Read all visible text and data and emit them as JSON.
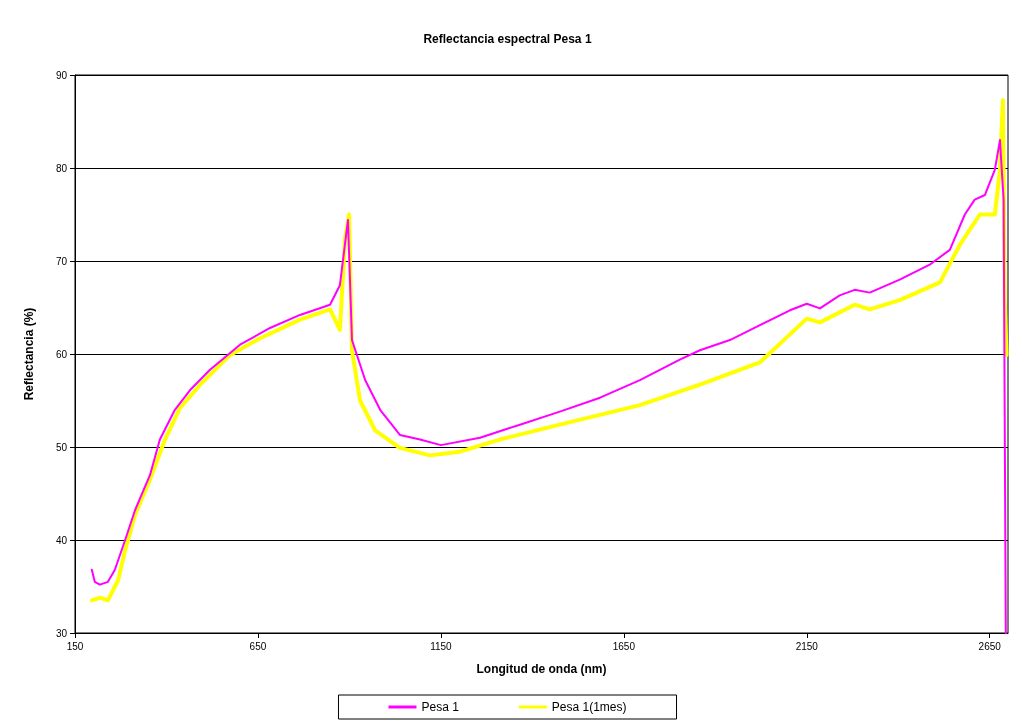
{
  "chart_data": {
    "type": "line",
    "title": "Reflectancia espectral Pesa 1",
    "xlabel": "Longitud de onda (nm)",
    "ylabel": "Reflectancia (%)",
    "xlim": [
      150,
      2700
    ],
    "xticks": [
      150,
      650,
      1150,
      1650,
      2150,
      2650
    ],
    "ylim": [
      30,
      90
    ],
    "yticks": [
      30,
      40,
      50,
      60,
      70,
      80,
      90
    ],
    "grid": "y",
    "legend": "bottom",
    "marker": "none",
    "line_style": "solid",
    "series": [
      {
        "name": "Pesa 1",
        "color": "#ff00ff",
        "x": [
          196,
          204,
          218,
          240,
          259,
          287,
          314,
          355,
          382,
          423,
          464,
          519,
          601,
          683,
          765,
          847,
          874,
          896,
          907,
          943,
          984,
          1038,
          1093,
          1150,
          1257,
          1366,
          1475,
          1585,
          1694,
          1803,
          1858,
          1940,
          2022,
          2104,
          2150,
          2186,
          2240,
          2281,
          2322,
          2404,
          2486,
          2541,
          2582,
          2609,
          2637,
          2664,
          2678,
          2688,
          2694
        ],
        "values": [
          36.8,
          35.5,
          35.2,
          35.5,
          36.8,
          40,
          43.2,
          47,
          50.8,
          54,
          56.1,
          58.3,
          61,
          62.8,
          64.2,
          65.3,
          67.4,
          74.4,
          61.5,
          57.2,
          54,
          51.3,
          50.8,
          50.2,
          51,
          52.4,
          53.8,
          55.3,
          57.2,
          59.4,
          60.4,
          61.5,
          63.1,
          64.7,
          65.4,
          64.9,
          66.3,
          66.9,
          66.6,
          68,
          69.6,
          71.2,
          75,
          76.6,
          77.1,
          79.8,
          83,
          76.6,
          30
        ]
      },
      {
        "name": "Pesa 1(1mes)",
        "color": "#ffff00",
        "x": [
          196,
          218,
          240,
          268,
          287,
          314,
          355,
          396,
          437,
          492,
          574,
          656,
          765,
          847,
          874,
          888,
          899,
          907,
          929,
          970,
          1038,
          1120,
          1202,
          1311,
          1475,
          1694,
          1858,
          2022,
          2150,
          2186,
          2281,
          2322,
          2404,
          2514,
          2568,
          2623,
          2664,
          2678,
          2686,
          2691,
          2696
        ],
        "values": [
          33.5,
          33.8,
          33.5,
          35.7,
          38.9,
          42.7,
          46.5,
          50.8,
          54.2,
          56.7,
          59.9,
          61.7,
          63.7,
          64.8,
          62.6,
          72.3,
          75,
          60.4,
          55,
          51.8,
          49.9,
          49.1,
          49.5,
          50.8,
          52.4,
          54.5,
          56.7,
          59.1,
          63.8,
          63.4,
          65.3,
          64.8,
          65.8,
          67.7,
          71.7,
          75,
          75,
          79.8,
          87.3,
          65.8,
          59.9
        ]
      }
    ]
  }
}
